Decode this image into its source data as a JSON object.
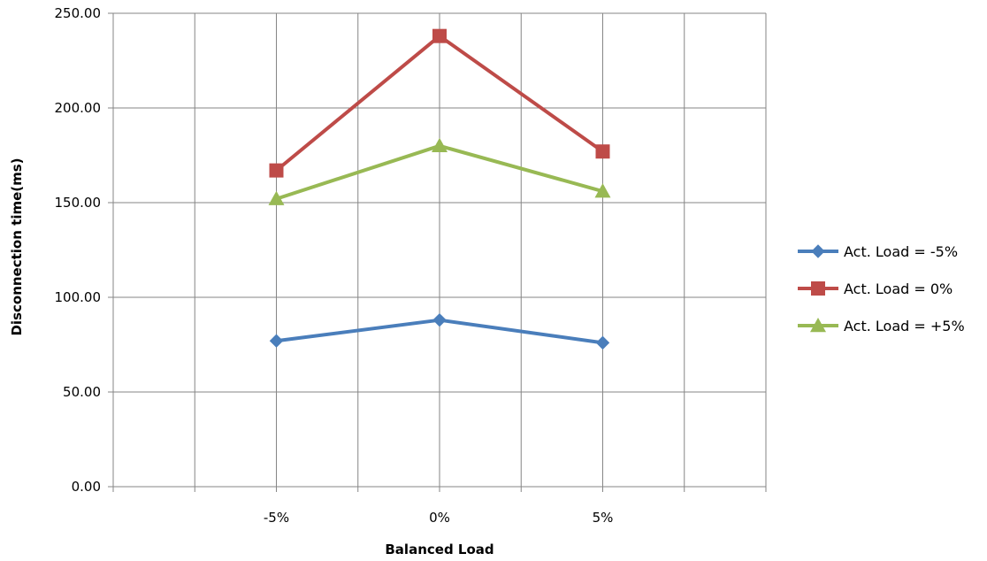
{
  "chart_data": {
    "type": "line",
    "xlabel": "Balanced Load",
    "ylabel": "Disconnection  time(ms)",
    "categories": [
      "-5%",
      "0%",
      "5%"
    ],
    "ylim": [
      0,
      250
    ],
    "yticks": [
      "0.00",
      "50.00",
      "100.00",
      "150.00",
      "200.00",
      "250.00"
    ],
    "grid": true,
    "legend_position": "right",
    "series": [
      {
        "name": "Act. Load = -5%",
        "values": [
          77,
          88,
          76
        ],
        "color": "#4a7ebb",
        "marker": "diamond"
      },
      {
        "name": "Act. Load = 0%",
        "values": [
          167,
          238,
          177
        ],
        "color": "#be4b48",
        "marker": "square"
      },
      {
        "name": "Act. Load = +5%",
        "values": [
          152,
          180,
          156
        ],
        "color": "#98b954",
        "marker": "triangle"
      }
    ]
  }
}
